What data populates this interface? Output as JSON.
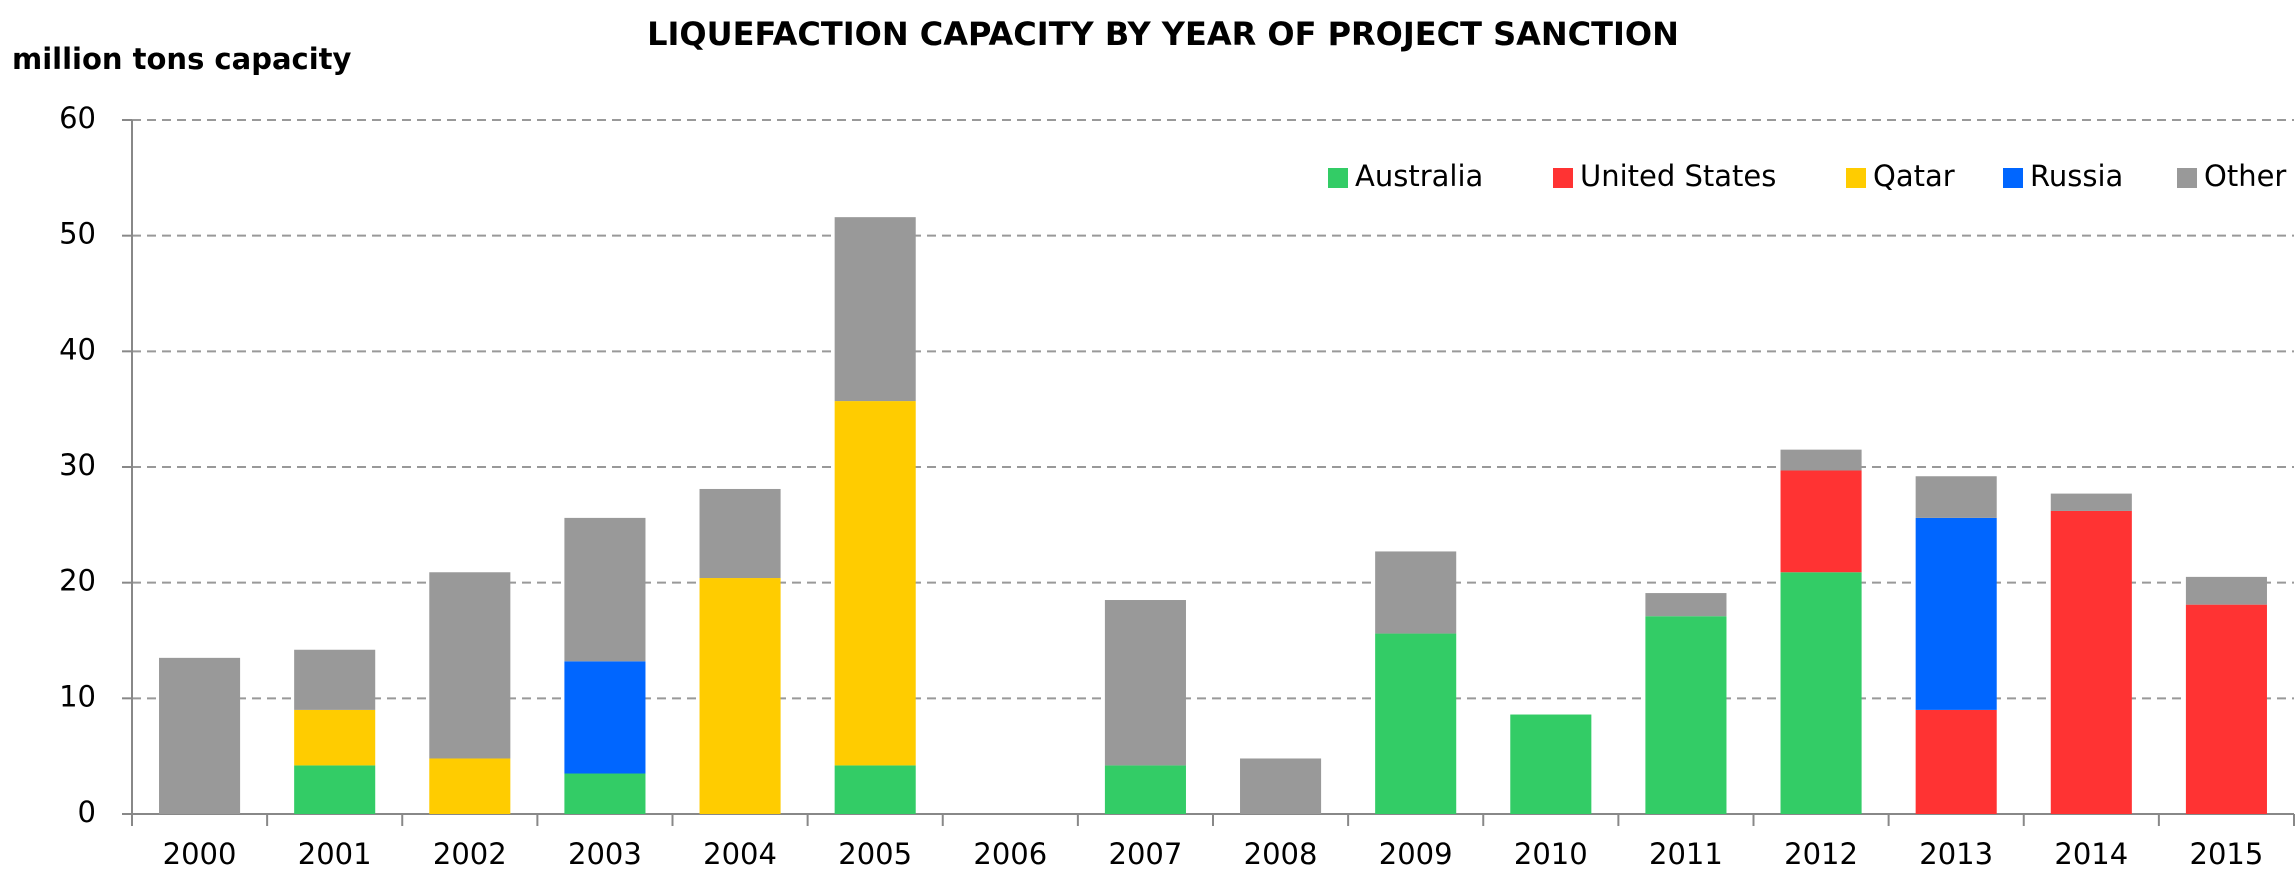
{
  "chart_data": {
    "type": "stacked_bar",
    "title": "LIQUEFACTION CAPACITY BY YEAR OF PROJECT SANCTION",
    "y_label": "million tons capacity",
    "categories": [
      "2000",
      "2001",
      "2002",
      "2003",
      "2004",
      "2005",
      "2006",
      "2007",
      "2008",
      "2009",
      "2010",
      "2011",
      "2012",
      "2013",
      "2014",
      "2015"
    ],
    "series": [
      {
        "name": "Australia",
        "color": "#33cc66",
        "values": [
          0,
          4.2,
          0,
          3.5,
          0,
          4.2,
          0,
          4.2,
          0,
          15.6,
          8.6,
          17.1,
          20.9,
          0,
          0,
          0
        ]
      },
      {
        "name": "United States",
        "color": "#ff3333",
        "values": [
          0,
          0,
          0,
          0,
          0,
          0,
          0,
          0,
          0,
          0,
          0,
          0,
          8.8,
          9.0,
          26.2,
          18.1
        ]
      },
      {
        "name": "Qatar",
        "color": "#ffcc00",
        "values": [
          0,
          4.8,
          4.8,
          0,
          20.4,
          31.5,
          0,
          0,
          0,
          0,
          0,
          0,
          0,
          0,
          0,
          0
        ]
      },
      {
        "name": "Russia",
        "color": "#0066ff",
        "values": [
          0,
          0,
          0,
          9.7,
          0,
          0,
          0,
          0,
          0,
          0,
          0,
          0,
          0,
          16.6,
          0,
          0
        ]
      },
      {
        "name": "Other",
        "color": "#999999",
        "values": [
          13.5,
          5.2,
          16.1,
          12.4,
          7.7,
          15.9,
          0,
          14.3,
          4.8,
          7.1,
          0,
          2.0,
          1.8,
          3.6,
          1.5,
          2.4
        ]
      }
    ],
    "ylim": [
      0,
      60
    ],
    "yticks": [
      0,
      10,
      20,
      30,
      40,
      50,
      60
    ],
    "grid": true,
    "legend": "top-right"
  }
}
